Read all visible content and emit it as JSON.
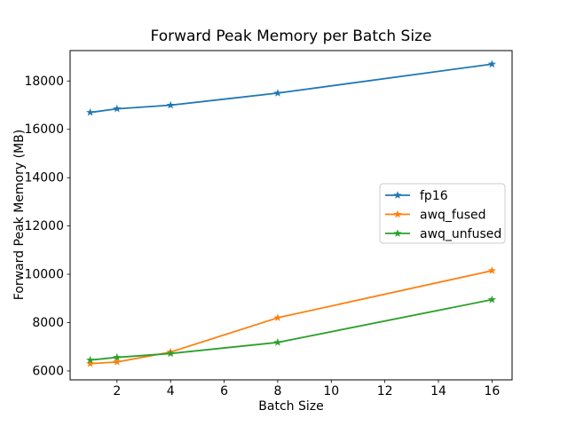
{
  "title": "Forward Peak Memory per Batch Size",
  "chart_data": {
    "type": "line",
    "title": "Forward Peak Memory per Batch Size",
    "xlabel": "Batch Size",
    "ylabel": "Forward Peak Memory (MB)",
    "x": [
      1,
      2,
      4,
      8,
      16
    ],
    "series": [
      {
        "name": "fp16",
        "color": "#1f77b4",
        "values": [
          16700,
          16850,
          17000,
          17500,
          18700
        ]
      },
      {
        "name": "awq_fused",
        "color": "#ff7f0e",
        "values": [
          6300,
          6370,
          6780,
          8200,
          10150
        ]
      },
      {
        "name": "awq_unfused",
        "color": "#2ca02c",
        "values": [
          6450,
          6560,
          6720,
          7180,
          8950
        ]
      }
    ],
    "marker": "star",
    "xticks": [
      2,
      4,
      6,
      8,
      10,
      12,
      14,
      16
    ],
    "yticks": [
      6000,
      8000,
      10000,
      12000,
      14000,
      16000,
      18000
    ],
    "xlim": [
      0.25,
      16.75
    ],
    "ylim": [
      5630,
      19260
    ],
    "grid": false,
    "legend_position": "center right",
    "colors": {
      "background": "#ffffff",
      "spine": "#000000",
      "legend_border": "#cccccc",
      "legend_background": "#ffffff"
    }
  }
}
